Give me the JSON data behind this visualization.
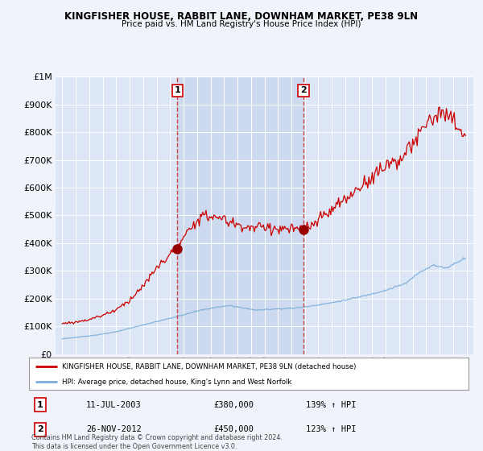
{
  "title": "KINGFISHER HOUSE, RABBIT LANE, DOWNHAM MARKET, PE38 9LN",
  "subtitle": "Price paid vs. HM Land Registry's House Price Index (HPI)",
  "red_label": "KINGFISHER HOUSE, RABBIT LANE, DOWNHAM MARKET, PE38 9LN (detached house)",
  "blue_label": "HPI: Average price, detached house, King's Lynn and West Norfolk",
  "footnote": "Contains HM Land Registry data © Crown copyright and database right 2024.\nThis data is licensed under the Open Government Licence v3.0.",
  "transaction1": {
    "num": 1,
    "date": "11-JUL-2003",
    "price": "£380,000",
    "hpi": "139% ↑ HPI",
    "x": 2003.53
  },
  "transaction2": {
    "num": 2,
    "date": "26-NOV-2012",
    "price": "£450,000",
    "hpi": "123% ↑ HPI",
    "x": 2012.9
  },
  "t1_y": 380000,
  "t2_y": 450000,
  "ylim": [
    0,
    1000000
  ],
  "xlim": [
    1994.5,
    2025.5
  ],
  "bg_color": "#f0f4fa",
  "plot_bg": "#dce6f5",
  "highlight_bg": "#ccd9ee",
  "red_color": "#cc0000",
  "blue_color": "#7aaddb",
  "dashed_color": "#cc4444"
}
